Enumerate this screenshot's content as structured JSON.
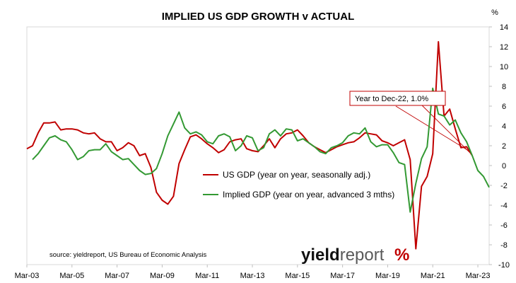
{
  "chart_data": {
    "type": "line",
    "title": "IMPLIED US GDP GROWTH v ACTUAL",
    "y_unit": "%",
    "ylim": [
      -10,
      14
    ],
    "y_ticks": [
      -10,
      -8,
      -6,
      -4,
      -2,
      0,
      2,
      4,
      6,
      8,
      10,
      12,
      14
    ],
    "x_ticks": [
      "Mar-03",
      "Mar-05",
      "Mar-07",
      "Mar-09",
      "Mar-11",
      "Mar-13",
      "Mar-15",
      "Mar-17",
      "Mar-19",
      "Mar-21",
      "Mar-23"
    ],
    "xlim": [
      "2003-03",
      "2023-09"
    ],
    "series": [
      {
        "name": "US GDP (year on year, seasonally adj.)",
        "color": "#c00000",
        "x": [
          "2003-03",
          "2003-06",
          "2003-09",
          "2003-12",
          "2004-03",
          "2004-06",
          "2004-09",
          "2004-12",
          "2005-03",
          "2005-06",
          "2005-09",
          "2005-12",
          "2006-03",
          "2006-06",
          "2006-09",
          "2006-12",
          "2007-03",
          "2007-06",
          "2007-09",
          "2007-12",
          "2008-03",
          "2008-06",
          "2008-09",
          "2008-12",
          "2009-03",
          "2009-06",
          "2009-09",
          "2009-12",
          "2010-03",
          "2010-06",
          "2010-09",
          "2010-12",
          "2011-03",
          "2011-06",
          "2011-09",
          "2011-12",
          "2012-03",
          "2012-06",
          "2012-09",
          "2012-12",
          "2013-03",
          "2013-06",
          "2013-09",
          "2013-12",
          "2014-03",
          "2014-06",
          "2014-09",
          "2014-12",
          "2015-03",
          "2015-06",
          "2015-09",
          "2015-12",
          "2016-03",
          "2016-06",
          "2016-09",
          "2016-12",
          "2017-03",
          "2017-06",
          "2017-09",
          "2017-12",
          "2018-03",
          "2018-06",
          "2018-09",
          "2018-12",
          "2019-03",
          "2019-06",
          "2019-09",
          "2019-12",
          "2020-03",
          "2020-06",
          "2020-09",
          "2020-12",
          "2021-03",
          "2021-06",
          "2021-09",
          "2021-12",
          "2022-03",
          "2022-06",
          "2022-09",
          "2022-12"
        ],
        "values": [
          1.7,
          2.0,
          3.3,
          4.3,
          4.3,
          4.4,
          3.6,
          3.7,
          3.7,
          3.6,
          3.3,
          3.2,
          3.3,
          2.7,
          2.4,
          2.4,
          1.5,
          1.8,
          2.3,
          2.0,
          1.0,
          1.2,
          -0.2,
          -2.7,
          -3.5,
          -3.9,
          -3.1,
          0.2,
          1.6,
          2.9,
          3.1,
          2.7,
          2.2,
          1.8,
          1.3,
          1.6,
          2.4,
          2.6,
          2.7,
          1.7,
          1.5,
          1.4,
          2.0,
          2.7,
          1.8,
          2.7,
          3.2,
          3.3,
          3.6,
          3.0,
          2.3,
          1.9,
          1.6,
          1.3,
          1.6,
          1.9,
          2.1,
          2.3,
          2.4,
          2.8,
          3.3,
          3.2,
          3.1,
          2.5,
          2.3,
          2.0,
          2.3,
          2.6,
          0.6,
          -8.4,
          -2.1,
          -1.1,
          1.2,
          12.5,
          5.0,
          5.7,
          3.7,
          1.8,
          1.9,
          1.0
        ]
      },
      {
        "name": "Implied GDP (year on year, advanced 3 mths)",
        "color": "#339933",
        "x": [
          "2003-06",
          "2003-09",
          "2003-12",
          "2004-03",
          "2004-06",
          "2004-09",
          "2004-12",
          "2005-03",
          "2005-06",
          "2005-09",
          "2005-12",
          "2006-03",
          "2006-06",
          "2006-09",
          "2006-12",
          "2007-03",
          "2007-06",
          "2007-09",
          "2007-12",
          "2008-03",
          "2008-06",
          "2008-09",
          "2008-12",
          "2009-03",
          "2009-06",
          "2009-09",
          "2009-12",
          "2010-03",
          "2010-06",
          "2010-09",
          "2010-12",
          "2011-03",
          "2011-06",
          "2011-09",
          "2011-12",
          "2012-03",
          "2012-06",
          "2012-09",
          "2012-12",
          "2013-03",
          "2013-06",
          "2013-09",
          "2013-12",
          "2014-03",
          "2014-06",
          "2014-09",
          "2014-12",
          "2015-03",
          "2015-06",
          "2015-09",
          "2015-12",
          "2016-03",
          "2016-06",
          "2016-09",
          "2016-12",
          "2017-03",
          "2017-06",
          "2017-09",
          "2017-12",
          "2018-03",
          "2018-06",
          "2018-09",
          "2018-12",
          "2019-03",
          "2019-06",
          "2019-09",
          "2019-12",
          "2020-03",
          "2020-06",
          "2020-09",
          "2020-12",
          "2021-03",
          "2021-06",
          "2021-09",
          "2021-12",
          "2022-03",
          "2022-06",
          "2022-09",
          "2022-12",
          "2023-03",
          "2023-06",
          "2023-09"
        ],
        "values": [
          0.6,
          1.2,
          2.0,
          2.8,
          3.0,
          2.6,
          2.4,
          1.6,
          0.6,
          0.9,
          1.5,
          1.6,
          1.6,
          2.2,
          1.4,
          1.0,
          0.6,
          0.7,
          0.1,
          -0.5,
          -0.9,
          -0.8,
          -0.3,
          1.2,
          3.0,
          4.2,
          5.4,
          3.8,
          3.2,
          3.4,
          3.1,
          2.4,
          2.2,
          3.0,
          3.2,
          2.9,
          1.5,
          2.0,
          3.0,
          2.8,
          1.5,
          1.8,
          3.2,
          3.6,
          3.0,
          3.7,
          3.6,
          2.5,
          2.7,
          2.3,
          1.9,
          1.4,
          1.2,
          1.8,
          2.0,
          2.3,
          3.0,
          3.3,
          3.2,
          3.8,
          2.4,
          1.9,
          2.1,
          2.1,
          1.3,
          0.3,
          0.1,
          -4.7,
          -1.8,
          0.7,
          1.9,
          7.8,
          5.2,
          5.0,
          4.1,
          4.6,
          3.3,
          2.4,
          1.0,
          -0.5,
          -1.1,
          -2.2
        ]
      }
    ],
    "annotation": "Year to Dec-22, 1.0%",
    "source": "source: yieldreport, US Bureau of Economic Analysis",
    "brand": {
      "text_bold": "yield",
      "text_light": "report",
      "symbol": "%"
    },
    "legend_position": "center"
  }
}
